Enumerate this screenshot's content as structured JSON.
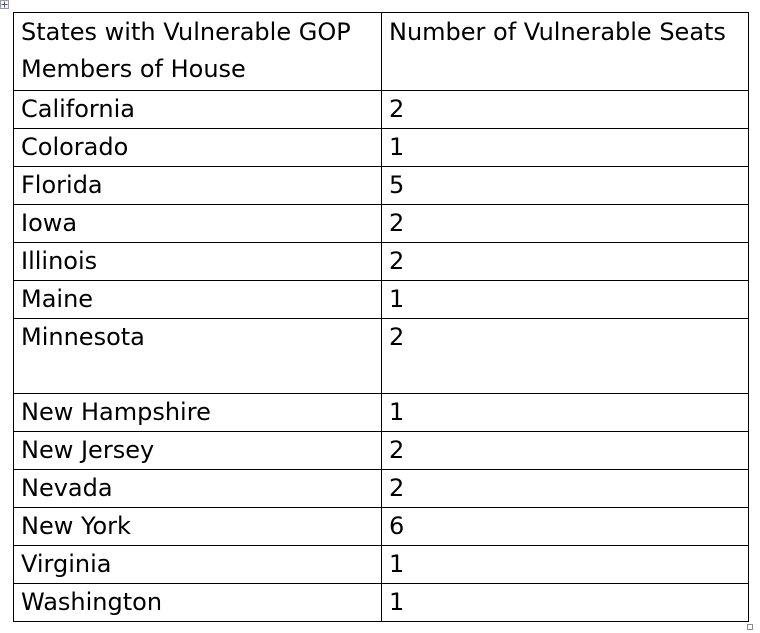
{
  "table": {
    "headers": [
      "States with Vulnerable GOP Members of House",
      "Number of Vulnerable Seats"
    ],
    "rows": [
      {
        "state": "California",
        "seats": "2"
      },
      {
        "state": "Colorado",
        "seats": "1"
      },
      {
        "state": "Florida",
        "seats": "5"
      },
      {
        "state": "Iowa",
        "seats": "2"
      },
      {
        "state": "Illinois",
        "seats": "2"
      },
      {
        "state": "Maine",
        "seats": "1"
      },
      {
        "state": "Minnesota",
        "seats": "2"
      },
      {
        "state": "New Hampshire",
        "seats": "1"
      },
      {
        "state": "New Jersey",
        "seats": "2"
      },
      {
        "state": "Nevada",
        "seats": "2"
      },
      {
        "state": "New York",
        "seats": "6"
      },
      {
        "state": "Virginia",
        "seats": "1"
      },
      {
        "state": "Washington",
        "seats": "1"
      }
    ]
  },
  "icons": {
    "move_handle": "table-move-icon",
    "resize_handle": "table-resize-icon"
  }
}
